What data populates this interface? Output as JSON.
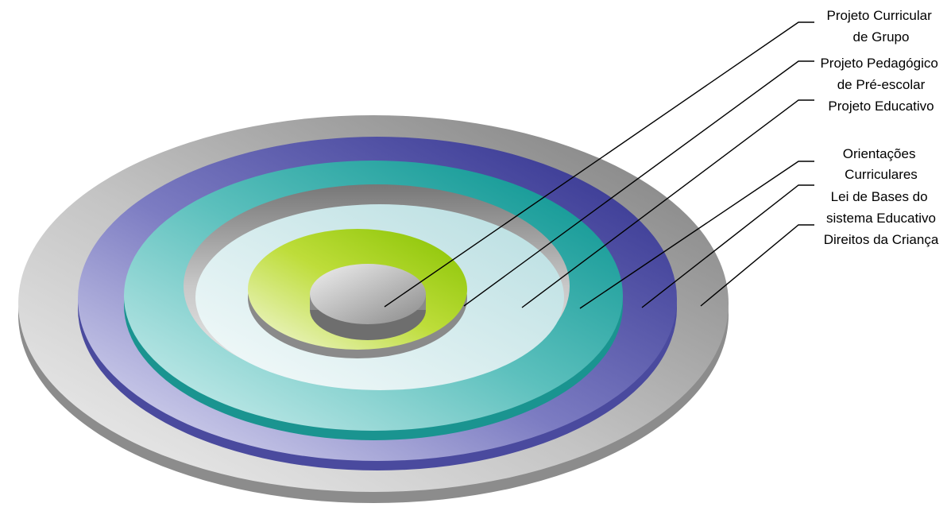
{
  "layers": [
    {
      "id": "projeto-curricular",
      "lines": [
        "Projeto Curricular",
        "de Grupo"
      ]
    },
    {
      "id": "projeto-pedagogico",
      "lines": [
        "Projeto Pedagógico",
        "de Pré-escolar"
      ]
    },
    {
      "id": "projeto-educativo",
      "lines": [
        "Projeto Educativo"
      ]
    },
    {
      "id": "orientacoes",
      "lines": [
        "Orientações",
        "Curriculares"
      ]
    },
    {
      "id": "lei-de-bases",
      "lines": [
        "Lei de Bases do",
        "sistema Educativo"
      ]
    },
    {
      "id": "direitos-crianca",
      "lines": [
        "Direitos da Criança"
      ]
    }
  ]
}
